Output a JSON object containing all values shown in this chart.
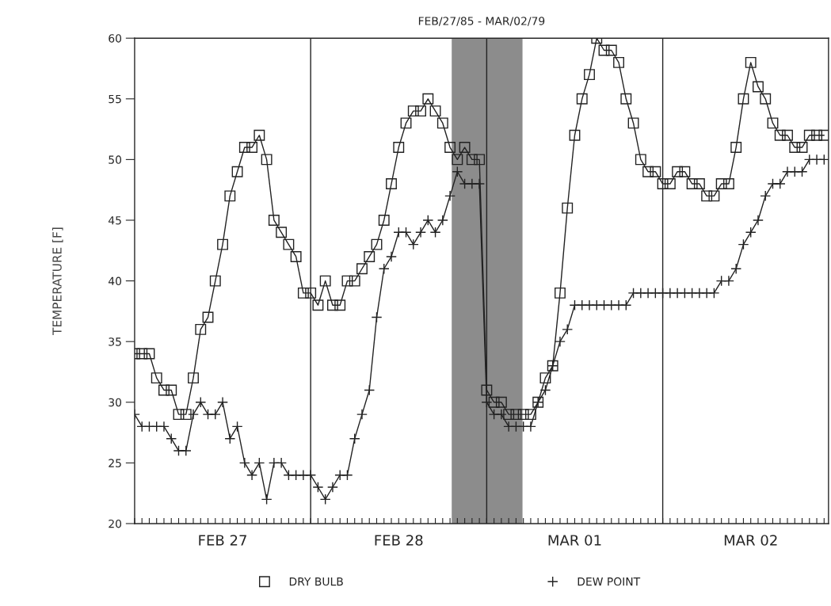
{
  "chart_data": {
    "type": "line",
    "title": "FEB/27/85 - MAR/02/79",
    "ylabel": "TEMPERATURE [F]",
    "categories": [
      null,
      null,
      null,
      null,
      null,
      null,
      null,
      null,
      null,
      null,
      null,
      null,
      "FEB 27",
      null,
      null,
      null,
      null,
      null,
      null,
      null,
      null,
      null,
      null,
      null,
      null,
      null,
      null,
      null,
      null,
      null,
      null,
      null,
      null,
      null,
      null,
      null,
      "FEB 28",
      null,
      null,
      null,
      null,
      null,
      null,
      null,
      null,
      null,
      null,
      null,
      null,
      null,
      null,
      null,
      null,
      null,
      null,
      null,
      null,
      null,
      null,
      null,
      "MAR 01",
      null,
      null,
      null,
      null,
      null,
      null,
      null,
      null,
      null,
      null,
      null,
      null,
      null,
      null,
      null,
      null,
      null,
      null,
      null,
      null,
      null,
      null,
      null,
      "MAR 02",
      null,
      null,
      null,
      null,
      null,
      null,
      null,
      null,
      null,
      null
    ],
    "series": [
      {
        "name": "DRY BULB",
        "color": "#222222",
        "marker": "square",
        "values": [
          34,
          34,
          34,
          32,
          31,
          31,
          29,
          29,
          32,
          36,
          37,
          40,
          43,
          47,
          49,
          51,
          51,
          52,
          50,
          45,
          44,
          43,
          42,
          39,
          39,
          38,
          40,
          38,
          38,
          40,
          40,
          41,
          42,
          43,
          45,
          48,
          51,
          53,
          54,
          54,
          55,
          54,
          53,
          51,
          50,
          51,
          50,
          50,
          31,
          30,
          30,
          29,
          29,
          29,
          29,
          30,
          32,
          33,
          39,
          46,
          52,
          55,
          57,
          60,
          59,
          59,
          58,
          55,
          53,
          50,
          49,
          49,
          48,
          48,
          49,
          49,
          48,
          48,
          47,
          47,
          48,
          48,
          51,
          55,
          58,
          56,
          55,
          53,
          52,
          52,
          51,
          51,
          52,
          52,
          52
        ]
      },
      {
        "name": "DEW POINT",
        "color": "#222222",
        "marker": "cross",
        "values": [
          29,
          28,
          28,
          28,
          28,
          27,
          26,
          26,
          29,
          30,
          29,
          29,
          30,
          27,
          28,
          25,
          24,
          25,
          22,
          25,
          25,
          24,
          24,
          24,
          24,
          23,
          22,
          23,
          24,
          24,
          27,
          29,
          31,
          37,
          41,
          42,
          44,
          44,
          43,
          44,
          45,
          44,
          45,
          47,
          49,
          48,
          48,
          48,
          30,
          29,
          29,
          28,
          28,
          28,
          28,
          30,
          31,
          33,
          35,
          36,
          38,
          38,
          38,
          38,
          38,
          38,
          38,
          38,
          39,
          39,
          39,
          39,
          39,
          39,
          39,
          39,
          39,
          39,
          39,
          39,
          40,
          40,
          41,
          43,
          44,
          45,
          47,
          48,
          48,
          49,
          49,
          49,
          50,
          50,
          50
        ]
      }
    ],
    "ylim": [
      20,
      60
    ],
    "yticks": [
      20,
      25,
      30,
      35,
      40,
      45,
      50,
      55,
      60
    ],
    "grid": "x",
    "legend": "bottom",
    "line_style": "solid"
  }
}
